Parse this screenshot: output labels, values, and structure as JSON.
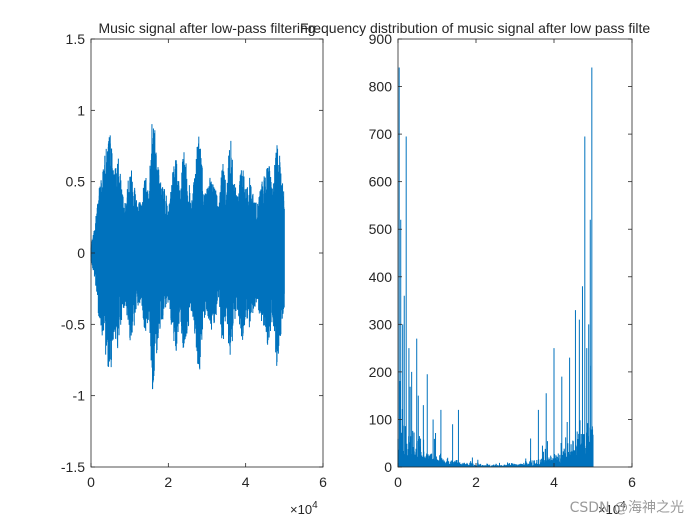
{
  "watermark": "CSDN @海神之光",
  "chart_data": [
    {
      "type": "line",
      "title": "Music signal after low-pass filtering",
      "xlabel": "",
      "ylabel": "",
      "xlim": [
        0,
        60000
      ],
      "ylim": [
        -1.5,
        1.5
      ],
      "xticks": [
        0,
        20000,
        40000,
        60000
      ],
      "xtick_labels": [
        "0",
        "2",
        "4",
        "6"
      ],
      "yticks": [
        -1.5,
        -1,
        -0.5,
        0,
        0.5,
        1,
        1.5
      ],
      "ytick_labels": [
        "-1.5",
        "-1",
        "-0.5",
        "0",
        "0.5",
        "1",
        "1.5"
      ],
      "x_multiplier": "×10",
      "x_multiplier_exp": "4",
      "color": "#0072BD",
      "n_samples": 50000,
      "envelope": {
        "x": [
          0,
          1000,
          2000,
          3000,
          4000,
          5000,
          6000,
          7000,
          8000,
          9000,
          10000,
          11000,
          12000,
          13000,
          14000,
          15000,
          16000,
          17000,
          18000,
          19000,
          20000,
          21000,
          22000,
          23000,
          24000,
          25000,
          26000,
          27000,
          28000,
          29000,
          30000,
          31000,
          32000,
          33000,
          34000,
          35000,
          36000,
          37000,
          38000,
          39000,
          40000,
          41000,
          42000,
          43000,
          44000,
          45000,
          46000,
          47000,
          48000,
          49000,
          50000
        ],
        "upper": [
          0.05,
          0.2,
          0.45,
          0.6,
          0.75,
          0.87,
          0.55,
          0.7,
          0.45,
          0.35,
          0.65,
          0.55,
          0.4,
          0.35,
          0.6,
          0.45,
          1.08,
          0.7,
          0.5,
          0.45,
          0.35,
          0.55,
          0.7,
          0.45,
          0.75,
          0.55,
          0.4,
          0.6,
          0.92,
          0.5,
          0.45,
          0.55,
          0.5,
          0.35,
          0.7,
          0.45,
          0.85,
          0.5,
          0.4,
          0.65,
          0.45,
          0.55,
          0.4,
          0.35,
          0.5,
          0.55,
          0.7,
          0.45,
          0.8,
          0.65,
          0.4
        ],
        "lower": [
          -0.05,
          -0.2,
          -0.45,
          -0.6,
          -0.75,
          -0.88,
          -0.55,
          -0.7,
          -0.45,
          -0.35,
          -0.65,
          -0.55,
          -0.4,
          -0.35,
          -0.6,
          -0.45,
          -1.01,
          -0.7,
          -0.5,
          -0.45,
          -0.35,
          -0.55,
          -0.7,
          -0.45,
          -0.75,
          -0.55,
          -0.4,
          -0.6,
          -0.92,
          -0.5,
          -0.45,
          -0.55,
          -0.5,
          -0.35,
          -0.7,
          -0.45,
          -0.85,
          -0.5,
          -0.4,
          -0.65,
          -0.45,
          -0.55,
          -0.4,
          -0.35,
          -0.5,
          -0.55,
          -0.7,
          -0.45,
          -0.8,
          -0.6,
          -0.4
        ]
      }
    },
    {
      "type": "line",
      "title": "Frequency distribution of music signal after low pass filte",
      "xlabel": "",
      "ylabel": "",
      "xlim": [
        0,
        60000
      ],
      "ylim": [
        0,
        900
      ],
      "xticks": [
        0,
        20000,
        40000,
        60000
      ],
      "xtick_labels": [
        "0",
        "2",
        "4",
        "6"
      ],
      "yticks": [
        0,
        100,
        200,
        300,
        400,
        500,
        600,
        700,
        800,
        900
      ],
      "ytick_labels": [
        "0",
        "100",
        "200",
        "300",
        "400",
        "500",
        "600",
        "700",
        "800",
        "900"
      ],
      "x_multiplier": "×10",
      "x_multiplier_exp": "4",
      "color": "#0072BD",
      "spectrum_extent": 50000,
      "peaks": [
        {
          "x": 300,
          "y": 840
        },
        {
          "x": 700,
          "y": 520
        },
        {
          "x": 1200,
          "y": 300
        },
        {
          "x": 1600,
          "y": 360
        },
        {
          "x": 2100,
          "y": 695
        },
        {
          "x": 2800,
          "y": 250
        },
        {
          "x": 3500,
          "y": 200
        },
        {
          "x": 4800,
          "y": 270
        },
        {
          "x": 5200,
          "y": 150
        },
        {
          "x": 6500,
          "y": 130
        },
        {
          "x": 7500,
          "y": 195
        },
        {
          "x": 9000,
          "y": 100
        },
        {
          "x": 11000,
          "y": 120
        },
        {
          "x": 14000,
          "y": 90
        },
        {
          "x": 15500,
          "y": 120
        },
        {
          "x": 34000,
          "y": 60
        },
        {
          "x": 36000,
          "y": 120
        },
        {
          "x": 38000,
          "y": 155
        },
        {
          "x": 40000,
          "y": 250
        },
        {
          "x": 42000,
          "y": 190
        },
        {
          "x": 44000,
          "y": 230
        },
        {
          "x": 45500,
          "y": 330
        },
        {
          "x": 46500,
          "y": 310
        },
        {
          "x": 47300,
          "y": 380
        },
        {
          "x": 47900,
          "y": 695
        },
        {
          "x": 48400,
          "y": 250
        },
        {
          "x": 48900,
          "y": 300
        },
        {
          "x": 49300,
          "y": 520
        },
        {
          "x": 49700,
          "y": 840
        }
      ]
    }
  ]
}
